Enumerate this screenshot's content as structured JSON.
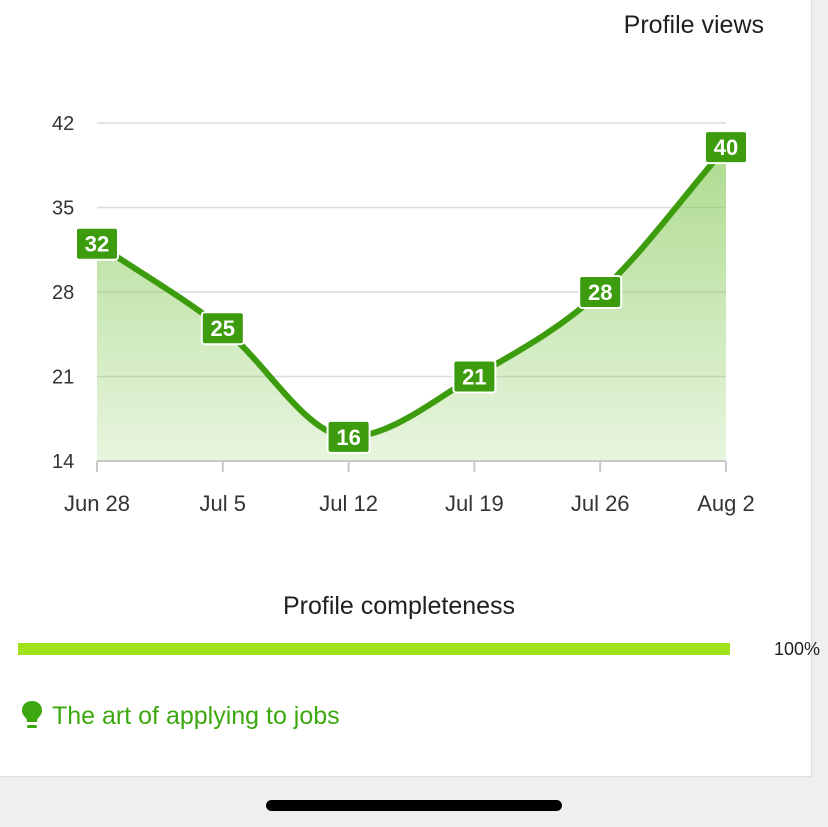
{
  "chart_data": {
    "type": "area",
    "title": "Profile views",
    "categories": [
      "Jun 28",
      "Jul 5",
      "Jul 12",
      "Jul 19",
      "Jul 26",
      "Aug 2"
    ],
    "values": [
      32,
      25,
      16,
      21,
      28,
      40
    ],
    "y_ticks": [
      "42",
      "35",
      "28",
      "21",
      "14"
    ],
    "ylim": [
      14,
      42
    ],
    "grid": true,
    "legend": "none",
    "line_color": "#3c9c0e",
    "fill_color": "#7cc54a",
    "label_bg_color": "#3c9c0e"
  },
  "completeness": {
    "title": "Profile completeness",
    "value": 100,
    "label": "100%",
    "bar_color": "#9fe21b"
  },
  "tip": {
    "label": "The art of applying to jobs",
    "icon": "lightbulb-icon",
    "color": "#3ca70e"
  }
}
